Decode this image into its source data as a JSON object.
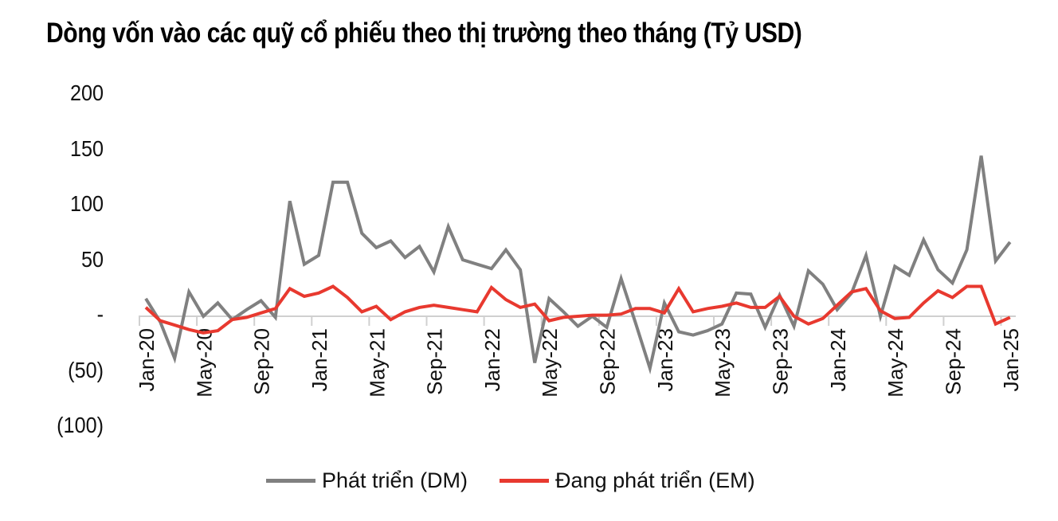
{
  "chart_data": {
    "type": "line",
    "title": "Dòng vốn vào các quỹ cổ phiếu theo thị trường theo tháng (Tỷ USD)",
    "xlabel": "",
    "ylabel": "",
    "ylim": [
      -100,
      200
    ],
    "yticks": [
      200,
      150,
      100,
      50,
      0,
      -50,
      -100
    ],
    "ytick_labels": [
      "200",
      "150",
      "100",
      "50",
      "-",
      "(50)",
      "(100)"
    ],
    "xtick_labels": [
      "Jan-20",
      "May-20",
      "Sep-20",
      "Jan-21",
      "May-21",
      "Sep-21",
      "Jan-22",
      "May-22",
      "Sep-22",
      "Jan-23",
      "May-23",
      "Sep-23",
      "Jan-24",
      "May-24",
      "Sep-24",
      "Jan-25"
    ],
    "x": [
      "Jan-20",
      "Feb-20",
      "Mar-20",
      "Apr-20",
      "May-20",
      "Jun-20",
      "Jul-20",
      "Aug-20",
      "Sep-20",
      "Oct-20",
      "Nov-20",
      "Dec-20",
      "Jan-21",
      "Feb-21",
      "Mar-21",
      "Apr-21",
      "May-21",
      "Jun-21",
      "Jul-21",
      "Aug-21",
      "Sep-21",
      "Oct-21",
      "Nov-21",
      "Dec-21",
      "Jan-22",
      "Feb-22",
      "Mar-22",
      "Apr-22",
      "May-22",
      "Jun-22",
      "Jul-22",
      "Aug-22",
      "Sep-22",
      "Oct-22",
      "Nov-22",
      "Dec-22",
      "Jan-23",
      "Feb-23",
      "Mar-23",
      "Apr-23",
      "May-23",
      "Jun-23",
      "Jul-23",
      "Aug-23",
      "Sep-23",
      "Oct-23",
      "Nov-23",
      "Dec-23",
      "Jan-24",
      "Feb-24",
      "Mar-24",
      "Apr-24",
      "May-24",
      "Jun-24",
      "Jul-24",
      "Aug-24",
      "Sep-24",
      "Oct-24",
      "Nov-24",
      "Dec-24",
      "Jan-25"
    ],
    "series": [
      {
        "name": "Phát triển (DM)",
        "color": "#808080",
        "values": [
          16,
          -5,
          -38,
          22,
          0,
          12,
          -3,
          6,
          14,
          -1,
          104,
          47,
          55,
          121,
          121,
          75,
          62,
          68,
          53,
          63,
          40,
          81,
          51,
          47,
          43,
          60,
          42,
          -42,
          16,
          4,
          -9,
          0,
          -10,
          34,
          -6,
          -47,
          12,
          -14,
          -17,
          -13,
          -7,
          21,
          20,
          -10,
          19,
          -9,
          41,
          29,
          6,
          21,
          55,
          0,
          45,
          37,
          69,
          42,
          30,
          60,
          145,
          50,
          67
        ]
      },
      {
        "name": "Đang phát triển (EM)",
        "color": "#e8392f",
        "values": [
          8,
          -4,
          -8,
          -12,
          -15,
          -13,
          -3,
          -1,
          3,
          7,
          25,
          18,
          21,
          27,
          17,
          4,
          9,
          -3,
          4,
          8,
          10,
          8,
          6,
          4,
          26,
          15,
          8,
          11,
          -4,
          -1,
          0,
          1,
          1,
          2,
          7,
          7,
          3,
          25,
          4,
          7,
          9,
          12,
          8,
          8,
          18,
          0,
          -7,
          -2,
          10,
          22,
          25,
          5,
          -2,
          -1,
          12,
          23,
          17,
          27,
          27,
          -7,
          -1
        ]
      }
    ],
    "legend_position": "bottom",
    "grid": false
  }
}
